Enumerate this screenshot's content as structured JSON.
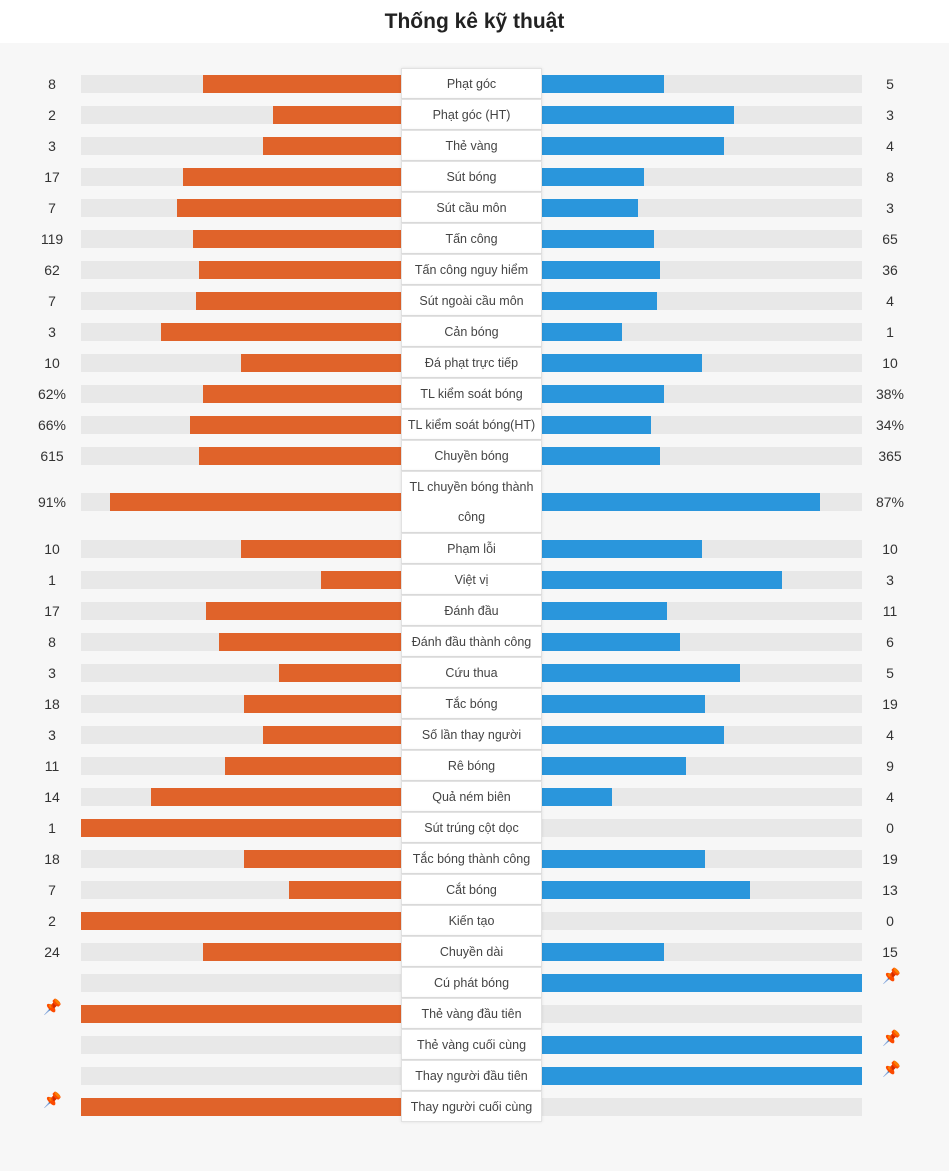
{
  "title": "Thống kê kỹ thuật",
  "colors": {
    "home": "#e0632a",
    "away": "#2a96dc",
    "track": "#e8e8e8",
    "pin": "#f2b600"
  },
  "pin_icon": "pushpin-icon",
  "stats": [
    {
      "label": "Phạt góc",
      "home": "8",
      "away": "5",
      "home_fill": 0.62,
      "away_fill": 0.38
    },
    {
      "label": "Phạt góc (HT)",
      "home": "2",
      "away": "3",
      "home_fill": 0.4,
      "away_fill": 0.6
    },
    {
      "label": "Thẻ vàng",
      "home": "3",
      "away": "4",
      "home_fill": 0.43,
      "away_fill": 0.57
    },
    {
      "label": "Sút bóng",
      "home": "17",
      "away": "8",
      "home_fill": 0.68,
      "away_fill": 0.32
    },
    {
      "label": "Sút cầu môn",
      "home": "7",
      "away": "3",
      "home_fill": 0.7,
      "away_fill": 0.3
    },
    {
      "label": "Tấn công",
      "home": "119",
      "away": "65",
      "home_fill": 0.65,
      "away_fill": 0.35
    },
    {
      "label": "Tấn công nguy hiểm",
      "home": "62",
      "away": "36",
      "home_fill": 0.63,
      "away_fill": 0.37
    },
    {
      "label": "Sút ngoài cầu môn",
      "home": "7",
      "away": "4",
      "home_fill": 0.64,
      "away_fill": 0.36
    },
    {
      "label": "Cản bóng",
      "home": "3",
      "away": "1",
      "home_fill": 0.75,
      "away_fill": 0.25
    },
    {
      "label": "Đá phạt trực tiếp",
      "home": "10",
      "away": "10",
      "home_fill": 0.5,
      "away_fill": 0.5
    },
    {
      "label": "TL kiểm soát bóng",
      "home": "62%",
      "away": "38%",
      "home_fill": 0.62,
      "away_fill": 0.38
    },
    {
      "label": "TL kiểm soát bóng(HT)",
      "home": "66%",
      "away": "34%",
      "home_fill": 0.66,
      "away_fill": 0.34
    },
    {
      "label": "Chuyền bóng",
      "home": "615",
      "away": "365",
      "home_fill": 0.63,
      "away_fill": 0.37
    },
    {
      "label": "TL chuyền bóng thành công",
      "home": "91%",
      "away": "87%",
      "home_fill": 0.91,
      "away_fill": 0.87,
      "tall": true
    },
    {
      "label": "Phạm lỗi",
      "home": "10",
      "away": "10",
      "home_fill": 0.5,
      "away_fill": 0.5
    },
    {
      "label": "Việt vị",
      "home": "1",
      "away": "3",
      "home_fill": 0.25,
      "away_fill": 0.75
    },
    {
      "label": "Đánh đầu",
      "home": "17",
      "away": "11",
      "home_fill": 0.61,
      "away_fill": 0.39
    },
    {
      "label": "Đánh đầu thành công",
      "home": "8",
      "away": "6",
      "home_fill": 0.57,
      "away_fill": 0.43
    },
    {
      "label": "Cứu thua",
      "home": "3",
      "away": "5",
      "home_fill": 0.38,
      "away_fill": 0.62
    },
    {
      "label": "Tắc bóng",
      "home": "18",
      "away": "19",
      "home_fill": 0.49,
      "away_fill": 0.51
    },
    {
      "label": "Số lần thay người",
      "home": "3",
      "away": "4",
      "home_fill": 0.43,
      "away_fill": 0.57
    },
    {
      "label": "Rê bóng",
      "home": "11",
      "away": "9",
      "home_fill": 0.55,
      "away_fill": 0.45
    },
    {
      "label": "Quả ném biên",
      "home": "14",
      "away": "4",
      "home_fill": 0.78,
      "away_fill": 0.22
    },
    {
      "label": "Sút trúng cột dọc",
      "home": "1",
      "away": "0",
      "home_fill": 1.0,
      "away_fill": 0.0
    },
    {
      "label": "Tắc bóng thành công",
      "home": "18",
      "away": "19",
      "home_fill": 0.49,
      "away_fill": 0.51
    },
    {
      "label": "Cắt bóng",
      "home": "7",
      "away": "13",
      "home_fill": 0.35,
      "away_fill": 0.65
    },
    {
      "label": "Kiến tạo",
      "home": "2",
      "away": "0",
      "home_fill": 1.0,
      "away_fill": 0.0
    },
    {
      "label": "Chuyền dài",
      "home": "24",
      "away": "15",
      "home_fill": 0.62,
      "away_fill": 0.38
    },
    {
      "label": "Cú phát bóng",
      "home": "",
      "away": "",
      "home_fill": 0.0,
      "away_fill": 1.0,
      "pin": "away"
    },
    {
      "label": "Thẻ vàng đầu tiên",
      "home": "",
      "away": "",
      "home_fill": 1.0,
      "away_fill": 0.0,
      "pin": "home"
    },
    {
      "label": "Thẻ vàng cuối cùng",
      "home": "",
      "away": "",
      "home_fill": 0.0,
      "away_fill": 1.0,
      "pin": "away"
    },
    {
      "label": "Thay người đầu tiên",
      "home": "",
      "away": "",
      "home_fill": 0.0,
      "away_fill": 1.0,
      "pin": "away"
    },
    {
      "label": "Thay người cuối cùng",
      "home": "",
      "away": "",
      "home_fill": 1.0,
      "away_fill": 0.0,
      "pin": "home"
    }
  ]
}
